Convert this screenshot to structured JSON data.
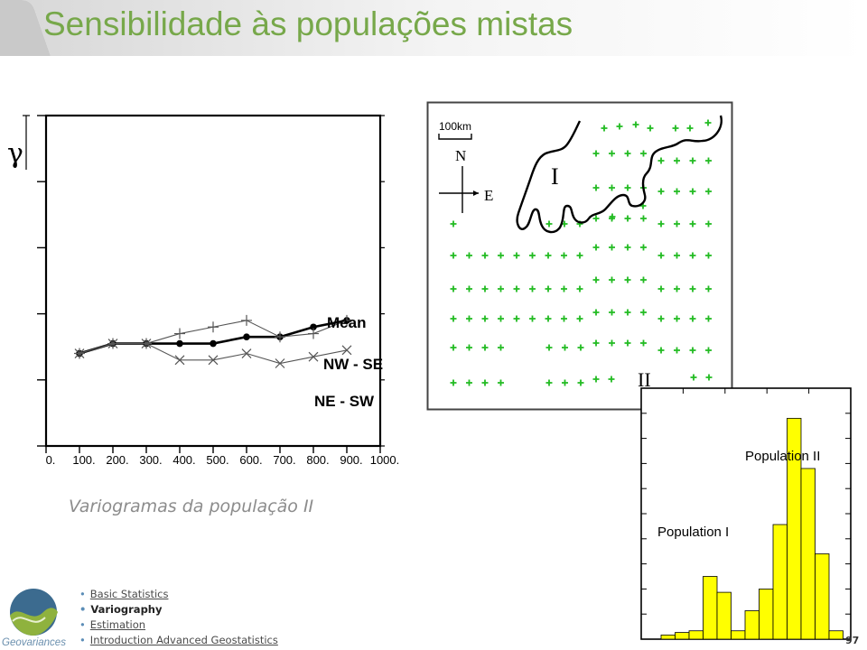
{
  "slide": {
    "title": "Sensibilidade às populações mistas",
    "caption": "Variogramas da população II",
    "page_number": "97"
  },
  "nav": {
    "items": [
      {
        "label": "Basic Statistics",
        "active": false
      },
      {
        "label": "Variography",
        "active": true
      },
      {
        "label": "Estimation",
        "active": false
      },
      {
        "label": "Introduction Advanced Geostatistics",
        "active": false
      }
    ]
  },
  "logo": {
    "text": "Geovariances"
  },
  "colors": {
    "title": "#77a84a",
    "map_points": "#22bb22",
    "histogram_bars": "#ffff00",
    "caption": "#8c8c8c"
  },
  "chart_data": [
    {
      "type": "line",
      "ylabel": "γ",
      "xlabel": "",
      "title": "",
      "x_ticks": [
        "0.",
        "100.",
        "200.",
        "300.",
        "400.",
        "500.",
        "600.",
        "700.",
        "800.",
        "900.",
        "1000."
      ],
      "xlim": [
        0,
        1000
      ],
      "ylim": [
        0,
        1
      ],
      "y_tick_values": [
        0,
        0.2,
        0.4,
        0.6,
        0.8,
        1.0
      ],
      "grid": false,
      "series": [
        {
          "name": "Mean",
          "x": [
            100,
            200,
            300,
            400,
            500,
            600,
            700,
            800,
            900
          ],
          "y": [
            0.28,
            0.31,
            0.31,
            0.31,
            0.31,
            0.33,
            0.33,
            0.36,
            0.38
          ]
        },
        {
          "name": "NW - SE",
          "x": [
            100,
            200,
            300,
            400,
            500,
            600,
            700,
            800,
            900
          ],
          "y": [
            0.28,
            0.31,
            0.31,
            0.34,
            0.36,
            0.38,
            0.33,
            0.34,
            0.38
          ]
        },
        {
          "name": "NE - SW",
          "x": [
            100,
            200,
            300,
            400,
            500,
            600,
            700,
            800,
            900
          ],
          "y": [
            0.28,
            0.31,
            0.31,
            0.26,
            0.26,
            0.28,
            0.25,
            0.27,
            0.29
          ]
        }
      ]
    },
    {
      "type": "scatter",
      "title": "",
      "scale_label": "100km",
      "north_label": "N",
      "east_label": "E",
      "region_labels": [
        "I",
        "II"
      ]
    },
    {
      "type": "bar",
      "title": "",
      "xlabel": "",
      "ylabel": "",
      "annotations": [
        "Population II",
        "Population I"
      ],
      "values": [
        0.5,
        0.8,
        1.0,
        7.5,
        5.6,
        1.0,
        3.4,
        6.0,
        13.7,
        26.4,
        20.4,
        10.2,
        1.0
      ],
      "ylim": [
        0,
        30
      ]
    }
  ]
}
